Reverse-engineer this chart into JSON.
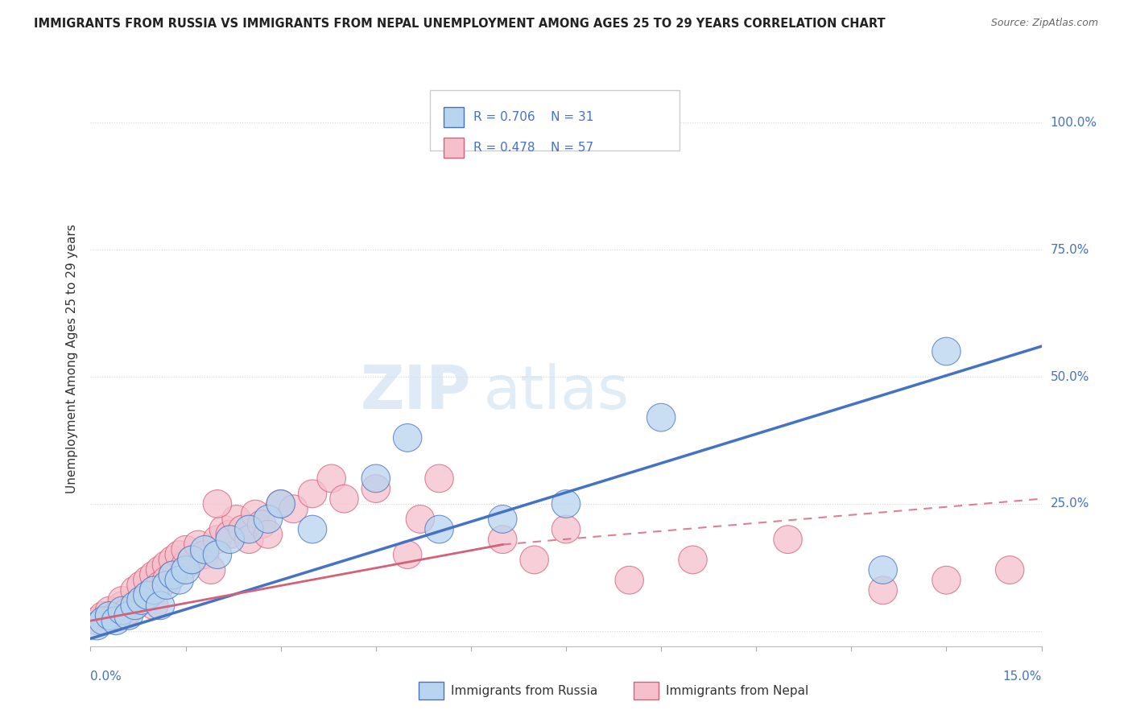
{
  "title": "IMMIGRANTS FROM RUSSIA VS IMMIGRANTS FROM NEPAL UNEMPLOYMENT AMONG AGES 25 TO 29 YEARS CORRELATION CHART",
  "source": "Source: ZipAtlas.com",
  "ylabel": "Unemployment Among Ages 25 to 29 years",
  "watermark_zip": "ZIP",
  "watermark_atlas": "atlas",
  "legend_russia": "Immigrants from Russia",
  "legend_nepal": "Immigrants from Nepal",
  "russia_R": "R = 0.706",
  "russia_N": "N = 31",
  "nepal_R": "R = 0.478",
  "nepal_N": "N = 57",
  "xlim": [
    0.0,
    15.0
  ],
  "ylim": [
    -3.0,
    110.0
  ],
  "ytick_vals": [
    0,
    25,
    50,
    75,
    100
  ],
  "background_color": "#ffffff",
  "grid_color": "#cccccc",
  "russia_fill": "#b8d4ee",
  "russia_edge": "#4472c4",
  "nepal_fill": "#f5c0cc",
  "nepal_edge": "#d4607a",
  "text_color_blue": "#4472c4",
  "title_color": "#222222",
  "source_color": "#666666",
  "russia_line_color": "#4472c4",
  "nepal_line_color": "#d4607a",
  "russia_scatter_x": [
    0.1,
    0.2,
    0.3,
    0.4,
    0.5,
    0.6,
    0.7,
    0.8,
    0.9,
    1.0,
    1.1,
    1.2,
    1.3,
    1.4,
    1.5,
    1.6,
    1.8,
    2.0,
    2.2,
    2.5,
    2.8,
    3.0,
    3.5,
    4.5,
    5.0,
    5.5,
    6.5,
    7.5,
    9.0,
    12.5,
    13.5
  ],
  "russia_scatter_y": [
    1,
    2,
    3,
    2,
    4,
    3,
    5,
    6,
    7,
    8,
    5,
    9,
    11,
    10,
    12,
    14,
    16,
    15,
    18,
    20,
    22,
    25,
    20,
    30,
    38,
    20,
    22,
    25,
    42,
    12,
    55
  ],
  "nepal_scatter_x": [
    0.1,
    0.2,
    0.3,
    0.4,
    0.5,
    0.5,
    0.6,
    0.7,
    0.7,
    0.8,
    0.8,
    0.9,
    0.9,
    1.0,
    1.0,
    1.0,
    1.1,
    1.1,
    1.2,
    1.2,
    1.3,
    1.3,
    1.4,
    1.5,
    1.5,
    1.6,
    1.7,
    1.8,
    1.9,
    2.0,
    2.1,
    2.2,
    2.3,
    2.4,
    2.5,
    2.6,
    2.7,
    2.8,
    3.0,
    3.2,
    3.5,
    3.8,
    4.0,
    4.5,
    5.0,
    5.2,
    5.5,
    6.5,
    7.0,
    7.5,
    8.5,
    9.5,
    11.0,
    12.5,
    13.5,
    14.5,
    2.0
  ],
  "nepal_scatter_y": [
    2,
    3,
    4,
    3,
    5,
    6,
    4,
    5,
    8,
    6,
    9,
    7,
    10,
    8,
    11,
    5,
    12,
    9,
    13,
    10,
    14,
    11,
    15,
    13,
    16,
    14,
    17,
    15,
    12,
    18,
    20,
    19,
    22,
    20,
    18,
    23,
    21,
    19,
    25,
    24,
    27,
    30,
    26,
    28,
    15,
    22,
    30,
    18,
    14,
    20,
    10,
    14,
    18,
    8,
    10,
    12,
    25
  ],
  "russia_reg_x0": 0.0,
  "russia_reg_y0": -1.5,
  "russia_reg_x1": 15.0,
  "russia_reg_y1": 56.0,
  "nepal_solid_x0": 0.0,
  "nepal_solid_y0": 2.0,
  "nepal_solid_x1": 6.5,
  "nepal_solid_y1": 17.0,
  "nepal_dash_x0": 6.5,
  "nepal_dash_y0": 17.0,
  "nepal_dash_x1": 15.0,
  "nepal_dash_y1": 26.0
}
